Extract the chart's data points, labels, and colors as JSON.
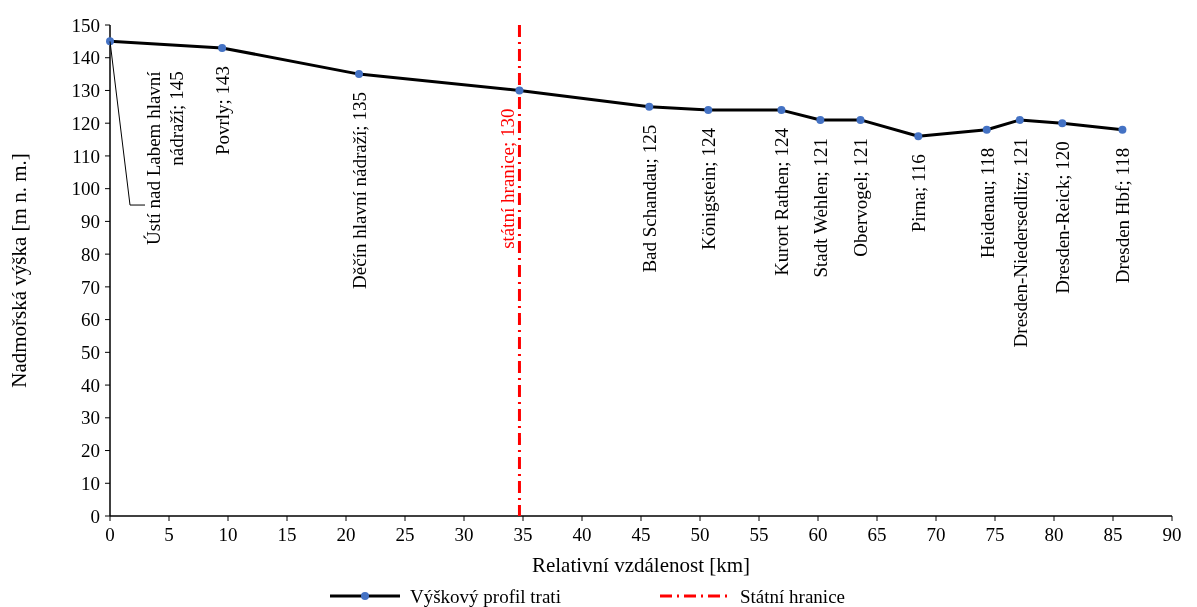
{
  "chart_data": {
    "type": "line",
    "xlabel": "Relativní vzdálenost [km]",
    "ylabel": "Nadmořská výška [m n. m.]",
    "x": [
      0,
      9.5,
      21.1,
      34.7,
      45.7,
      50.7,
      56.9,
      60.2,
      63.6,
      68.5,
      74.3,
      77.1,
      80.7,
      85.8
    ],
    "series": [
      {
        "name": "Výškový profil trati",
        "color": "#000000",
        "colors": [
          "#4472c4",
          "#4472c4",
          "#4472c4",
          "#4472c4",
          "#4472c4",
          "#4472c4",
          "#4472c4",
          "#4472c4",
          "#4472c4",
          "#4472c4",
          "#4472c4",
          "#4472c4",
          "#4472c4",
          "#4472c4"
        ],
        "values": [
          145,
          143,
          135,
          130,
          125,
          124,
          124,
          121,
          121,
          116,
          118,
          121,
          120,
          118
        ],
        "value_labels": [
          "Ústí nad Labem hlavní nádraží; 145",
          "Povrly; 143",
          "Děčín hlavní nádraží; 135",
          "státní hranice; 130",
          "Bad Schandau; 125",
          "Königstein; 124",
          "Kurort Rathen; 124",
          "Stadt Wehlen; 121",
          "Obervogel; 121",
          "Pirna; 116",
          "Heidenau; 118",
          "Dresden-Niedersedlitz; 121",
          "Dresden-Reick; 120",
          "Dresden Hbf; 118"
        ]
      }
    ],
    "marker": "circle",
    "xlim": [
      0,
      90
    ],
    "xticks": [
      0,
      5,
      10,
      15,
      20,
      25,
      30,
      35,
      40,
      45,
      50,
      55,
      60,
      65,
      70,
      75,
      80,
      85,
      90
    ],
    "ylim": [
      0,
      150
    ],
    "yticks": [
      0,
      10,
      20,
      30,
      40,
      50,
      60,
      70,
      80,
      90,
      100,
      110,
      120,
      130,
      140,
      150
    ],
    "ref_lines": [
      {
        "axis": "x",
        "value": 34.7,
        "label": "Státní hranice",
        "color": "#ff0000",
        "line_style": "dashdot"
      }
    ],
    "grid": false,
    "legend": "bottom"
  }
}
